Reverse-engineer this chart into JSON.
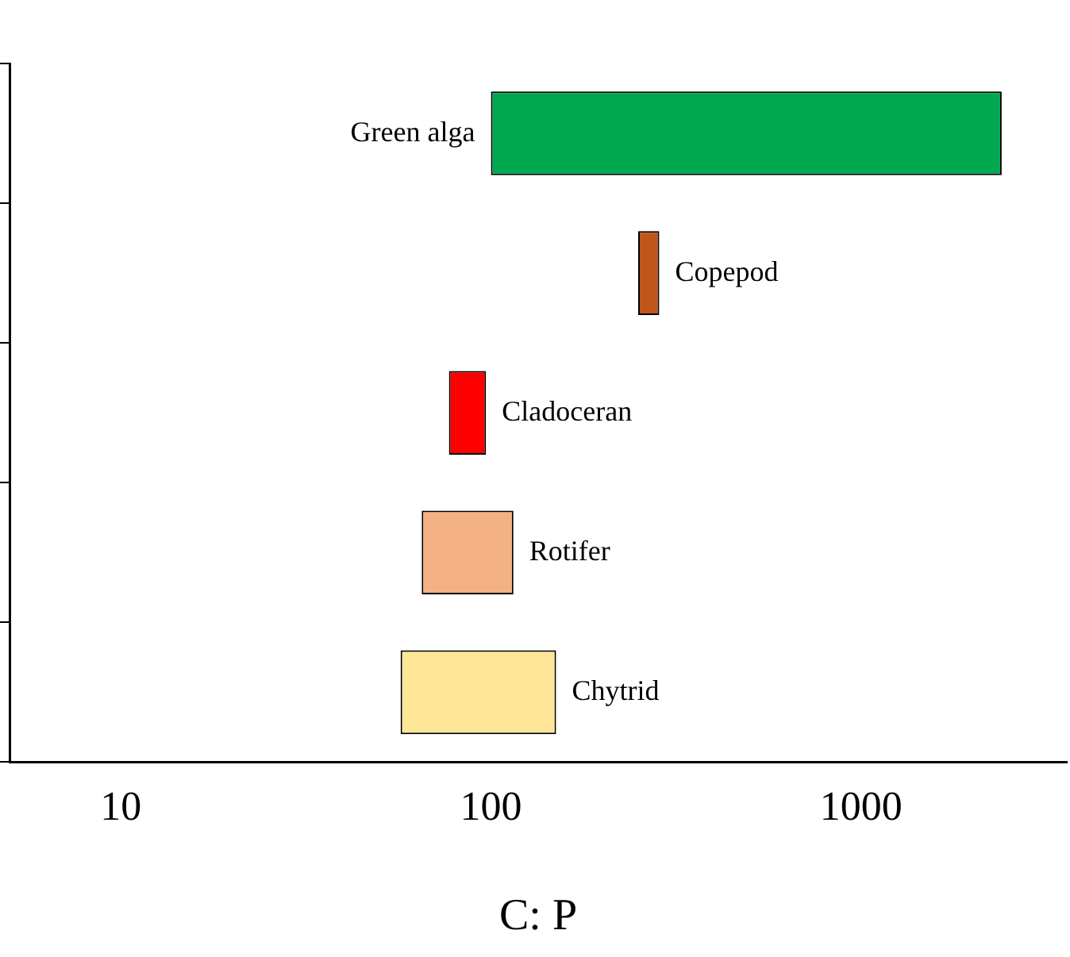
{
  "chart_data": {
    "type": "bar",
    "orientation": "horizontal",
    "log": "x",
    "xlabel": "C: P",
    "categories": [
      "Green alga",
      "Copepod",
      "Cladoceran",
      "Rotifer",
      "Chytrid"
    ],
    "base": [
      100,
      250,
      77,
      65,
      57
    ],
    "values": [
      2300,
      35,
      20,
      50,
      93
    ],
    "colors": [
      "#00a84f",
      "#c0561a",
      "#ff0000",
      "#f4b183",
      "#ffe699"
    ],
    "xlim": [
      5,
      3600
    ],
    "xticks": [
      10,
      100,
      1000
    ],
    "tick_labels": "x",
    "grid": false,
    "legend": false
  }
}
